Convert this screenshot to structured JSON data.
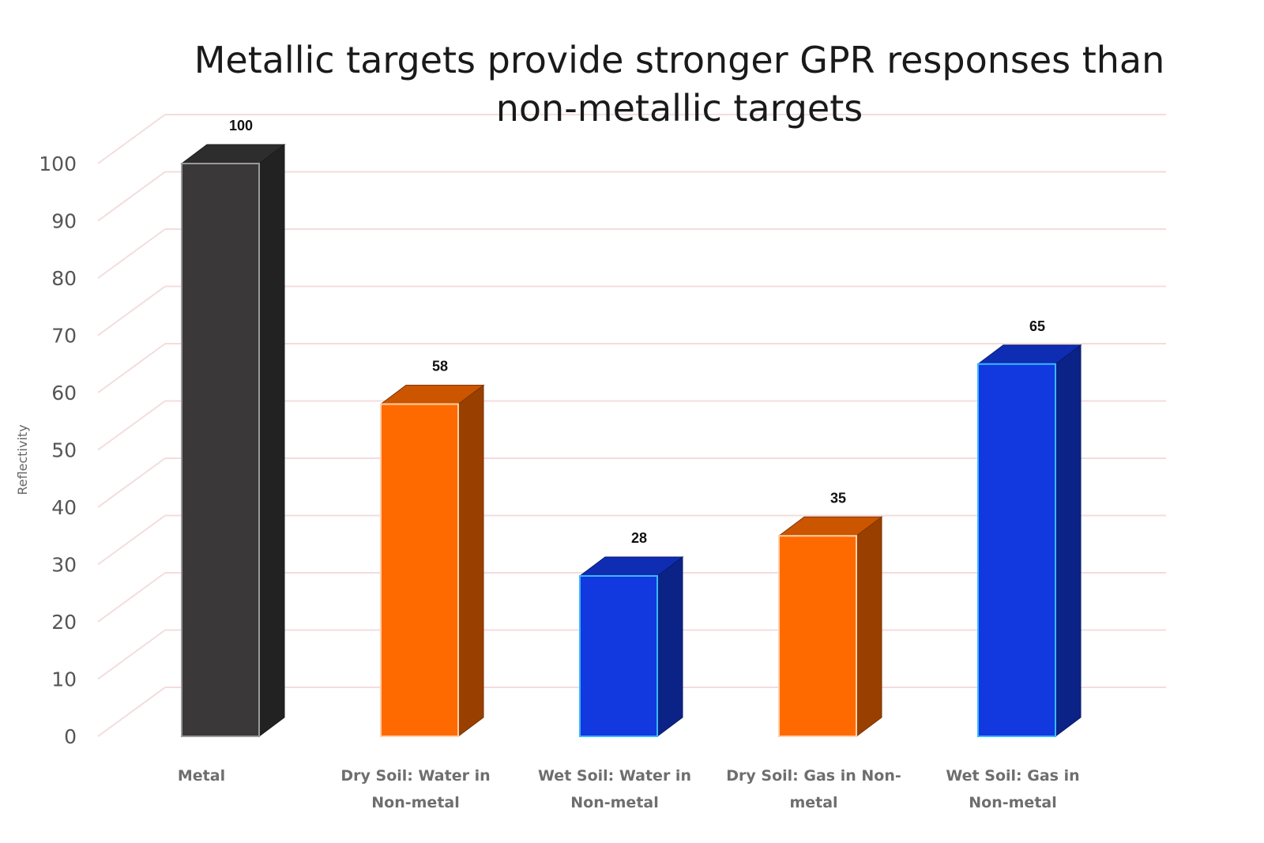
{
  "chart_data": {
    "type": "bar",
    "title_lines": [
      "Metallic targets provide stronger GPR responses than",
      "non-metallic targets"
    ],
    "ylabel": "Reflectivity",
    "xlabel": "",
    "ylim": [
      0,
      100
    ],
    "yticks": [
      0,
      10,
      20,
      30,
      40,
      50,
      60,
      70,
      80,
      90,
      100
    ],
    "grid": true,
    "legend": "none",
    "style": "3d-column",
    "categories": [
      [
        "Metal"
      ],
      [
        "Dry Soil: Water in",
        "Non-metal"
      ],
      [
        "Wet Soil: Water in",
        "Non-metal"
      ],
      [
        "Dry Soil: Gas in Non-",
        "metal"
      ],
      [
        "Wet Soil: Gas in",
        "Non-metal"
      ]
    ],
    "values": [
      100,
      58,
      28,
      35,
      65
    ],
    "data_labels": [
      "100",
      "58",
      "28",
      "35",
      "65"
    ],
    "colors": [
      "#3a3838",
      "#ff6a00",
      "#1238e0",
      "#ff6a00",
      "#1238e0"
    ]
  }
}
